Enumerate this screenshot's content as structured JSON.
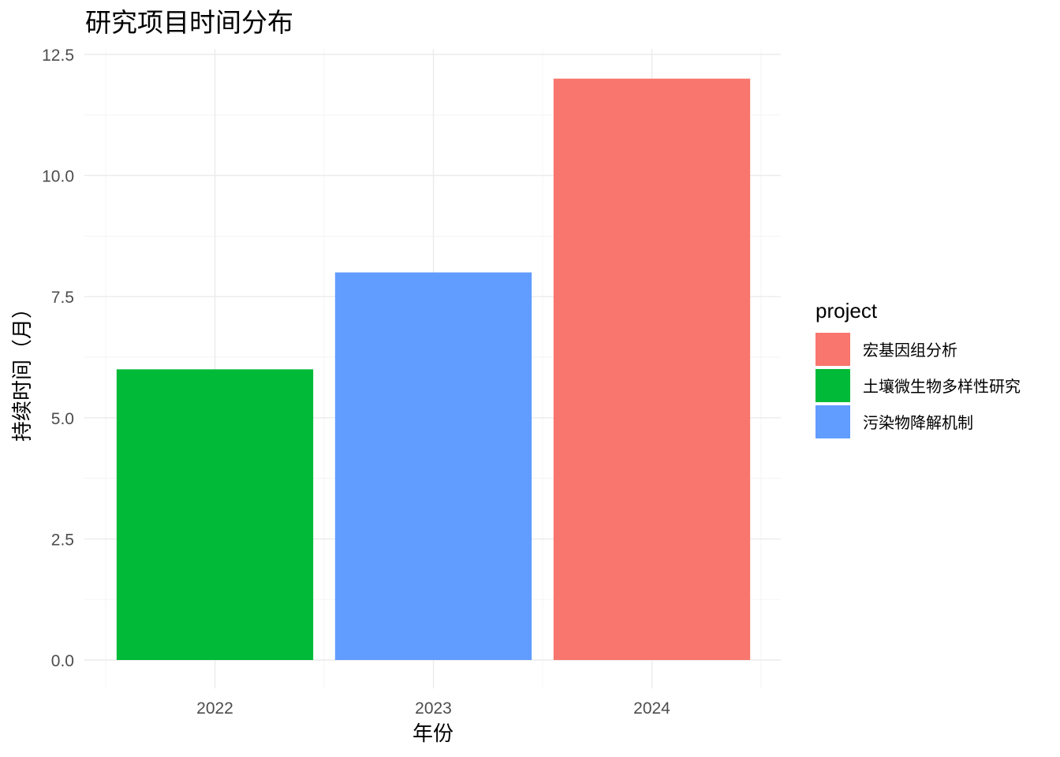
{
  "chart_data": {
    "type": "bar",
    "title": "研究项目时间分布",
    "xlabel": "年份",
    "ylabel": "持续时间（月）",
    "categories": [
      "2022",
      "2023",
      "2024"
    ],
    "bars": [
      {
        "x": "2022",
        "value": 6,
        "project": "土壤微生物多样性研究"
      },
      {
        "x": "2023",
        "value": 8,
        "project": "污染物降解机制"
      },
      {
        "x": "2024",
        "value": 12,
        "project": "宏基因组分析"
      }
    ],
    "ylim": [
      0,
      12.5
    ],
    "yticks": [
      "0.0",
      "2.5",
      "5.0",
      "7.5",
      "10.0",
      "12.5"
    ],
    "grid": true,
    "legend": {
      "title": "project",
      "position": "right",
      "entries": [
        {
          "label": "宏基因组分析",
          "color": "#F8766D"
        },
        {
          "label": "土壤微生物多样性研究",
          "color": "#00BA38"
        },
        {
          "label": "污染物降解机制",
          "color": "#619CFF"
        }
      ]
    }
  }
}
